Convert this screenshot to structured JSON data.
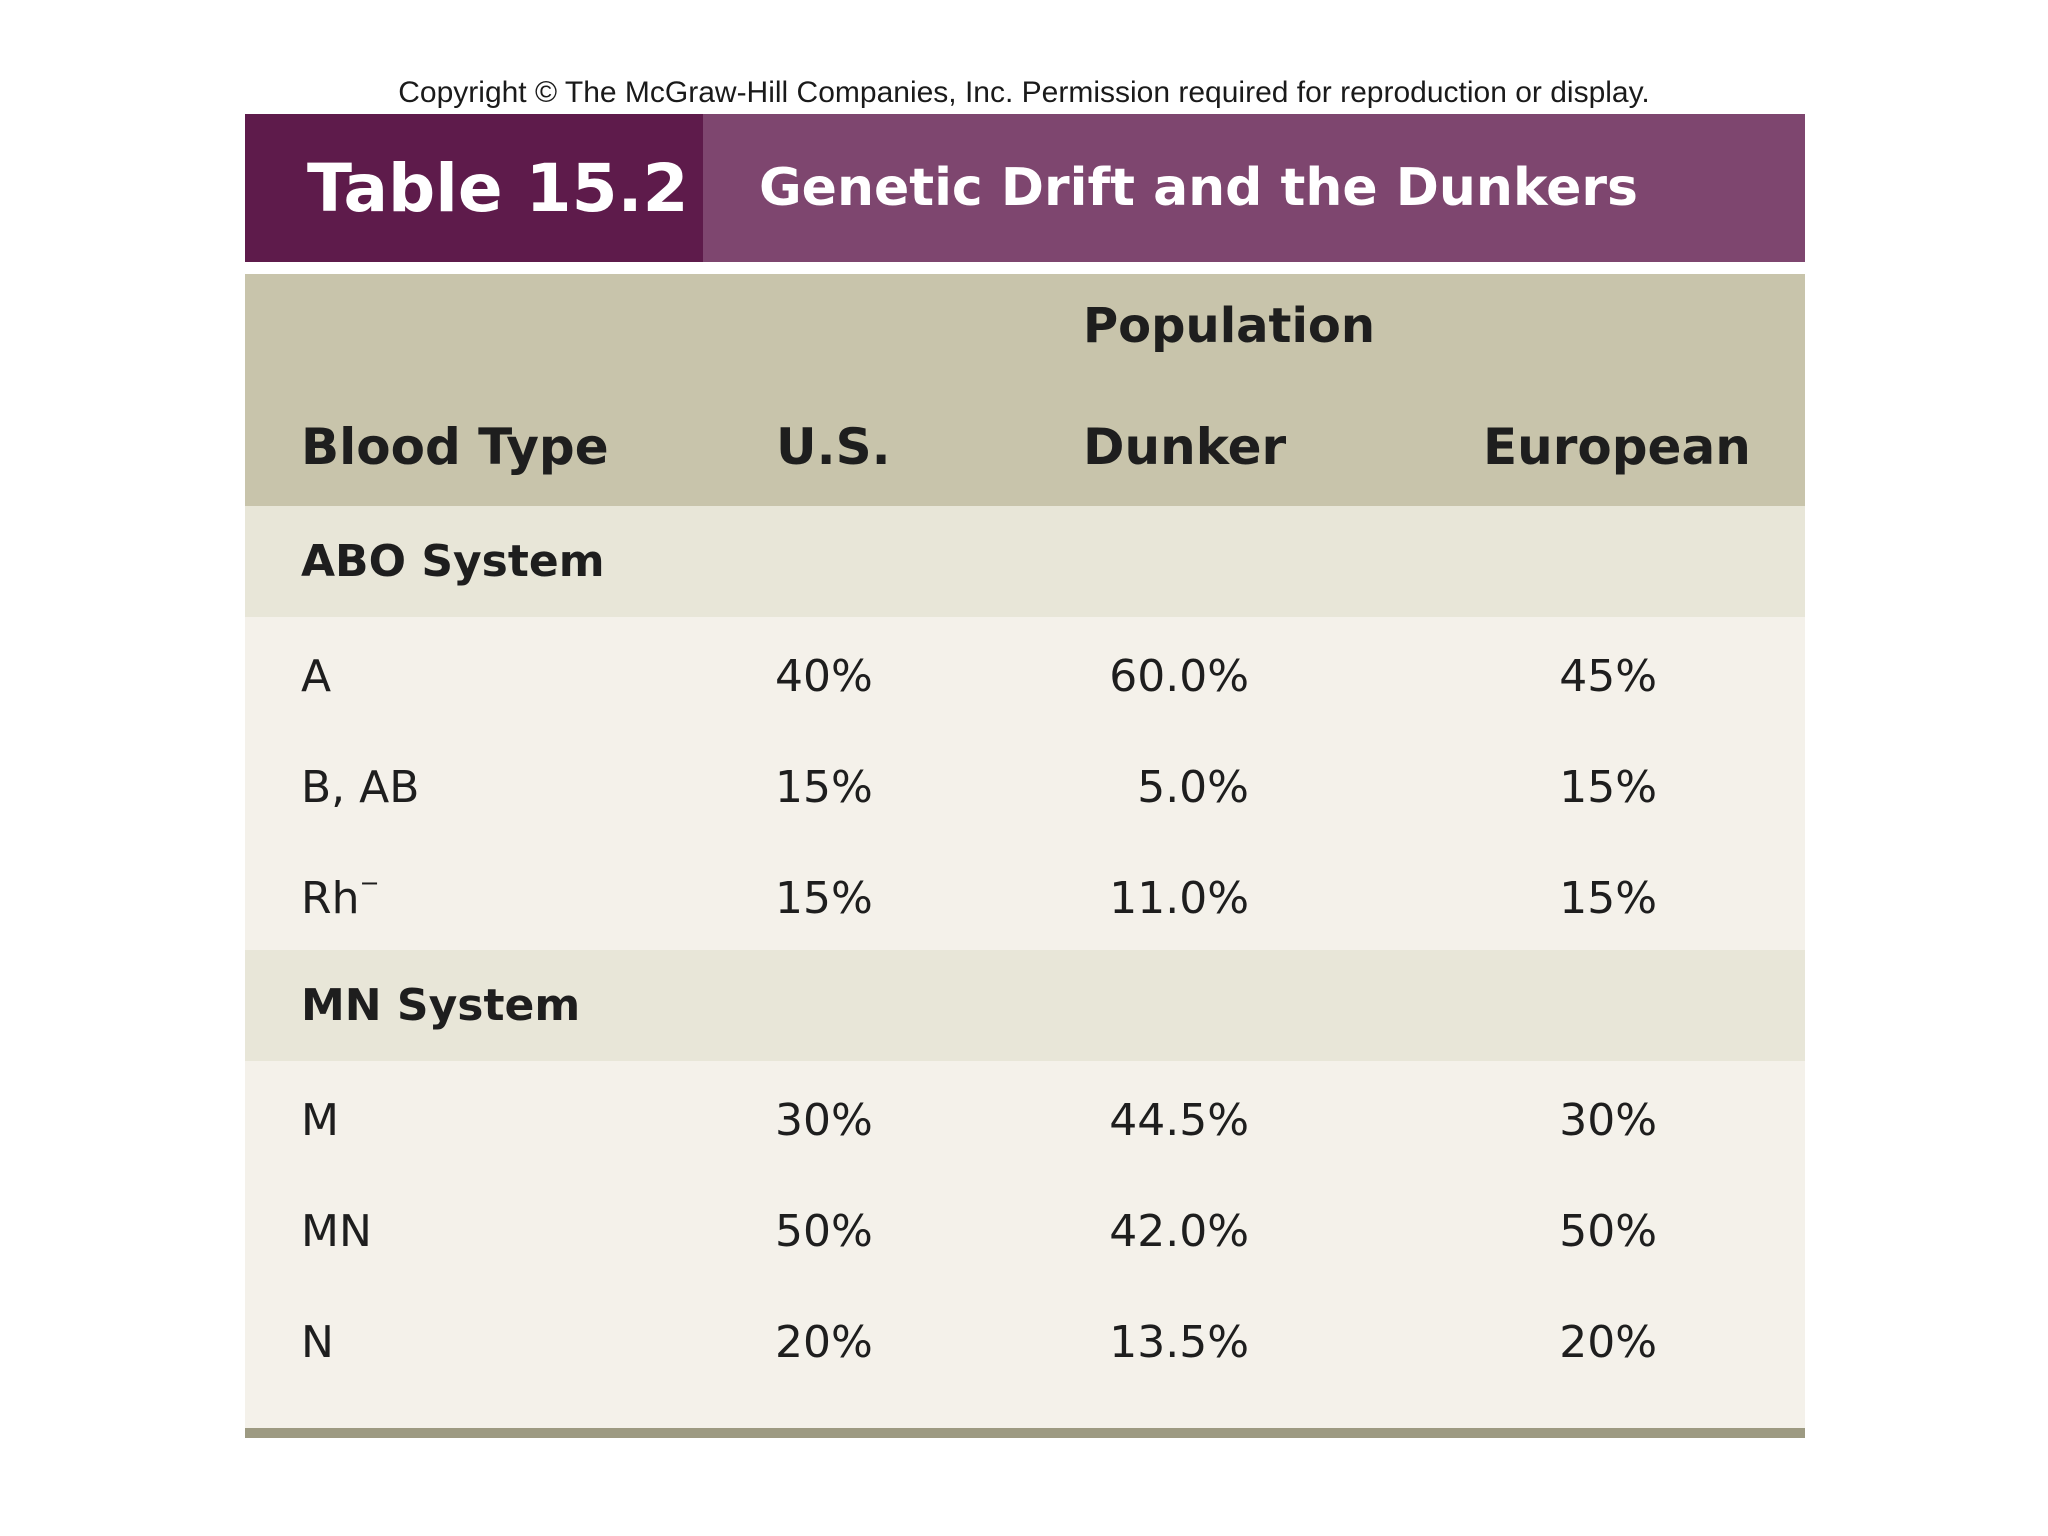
{
  "copyright": "Copyright © The McGraw-Hill Companies, Inc. Permission required for reproduction or display.",
  "banner": {
    "table_number": "Table 15.2",
    "title": "Genetic Drift and the Dunkers"
  },
  "header": {
    "group_label": "Population",
    "columns": [
      "Blood Type",
      "U.S.",
      "Dunker",
      "European"
    ]
  },
  "sections": [
    {
      "label": "ABO System",
      "rows": [
        {
          "type": "A",
          "type_sup": "",
          "us": "40%",
          "dunker": "60.0%",
          "european": "45%"
        },
        {
          "type": "B, AB",
          "type_sup": "",
          "us": "15%",
          "dunker": "5.0%",
          "european": "15%"
        },
        {
          "type": "Rh",
          "type_sup": "−",
          "us": "15%",
          "dunker": "11.0%",
          "european": "15%"
        }
      ]
    },
    {
      "label": "MN System",
      "rows": [
        {
          "type": "M",
          "type_sup": "",
          "us": "30%",
          "dunker": "44.5%",
          "european": "30%"
        },
        {
          "type": "MN",
          "type_sup": "",
          "us": "50%",
          "dunker": "42.0%",
          "european": "50%"
        },
        {
          "type": "N",
          "type_sup": "",
          "us": "20%",
          "dunker": "13.5%",
          "european": "20%"
        }
      ]
    }
  ]
}
